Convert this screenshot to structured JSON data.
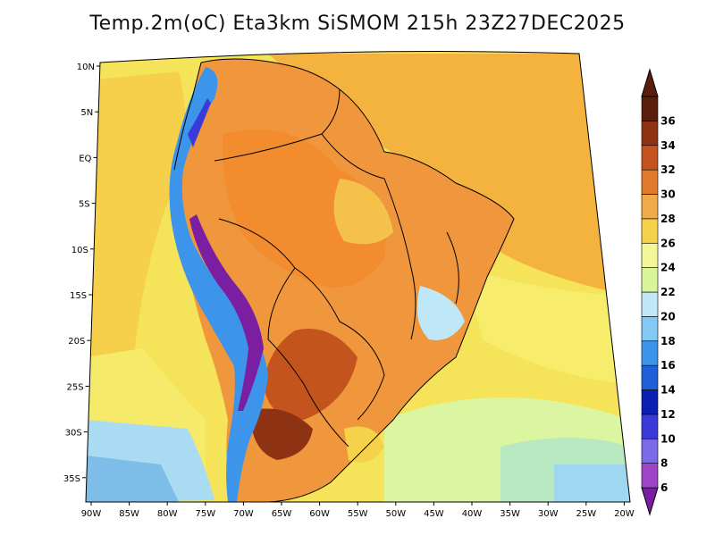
{
  "title": "Temp.2m(oC) Eta3km SiSMOM 215h 23Z27DEC2025",
  "map": {
    "variable": "2 m temperature",
    "units": "oC",
    "model": "Eta3km SiSMOM",
    "forecast_hour": "215h",
    "valid_time": "23Z27DEC2025",
    "lat_ticks": [
      "10N",
      "5N",
      "EQ",
      "5S",
      "10S",
      "15S",
      "20S",
      "25S",
      "30S",
      "35S"
    ],
    "lon_ticks": [
      "90W",
      "85W",
      "80W",
      "75W",
      "70W",
      "65W",
      "60W",
      "55W",
      "50W",
      "45W",
      "40W",
      "35W",
      "30W",
      "25W",
      "20W"
    ]
  },
  "colorbar": {
    "levels": [
      "6",
      "8",
      "10",
      "12",
      "14",
      "16",
      "18",
      "20",
      "22",
      "24",
      "26",
      "28",
      "30",
      "32",
      "34",
      "36"
    ],
    "colors": [
      "#7b1fa2",
      "#9c45c6",
      "#7c6ae8",
      "#3a3ad8",
      "#0b1fb0",
      "#1f5fd8",
      "#3c95ea",
      "#84c8f6",
      "#bfe7f7",
      "#d8f59a",
      "#f5f59a",
      "#f6d24a",
      "#f2a94a",
      "#e27a2c",
      "#c4541e",
      "#8e3214",
      "#5a1e0c"
    ]
  }
}
